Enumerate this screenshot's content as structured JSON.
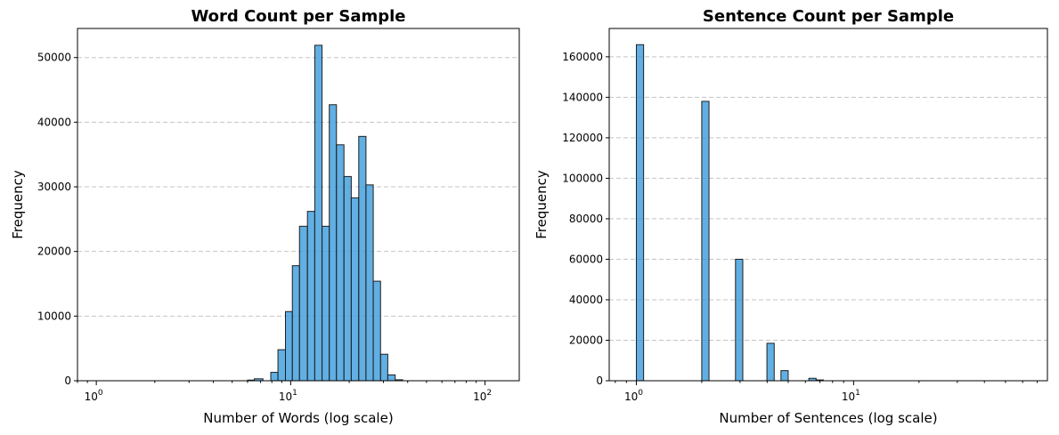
{
  "style": {
    "bar_color": "#3498db",
    "edge_color": "#222222",
    "grid_color": "#c4c4c4"
  },
  "chart_data": [
    {
      "type": "bar",
      "title": "Word Count per Sample",
      "xlabel": "Number of Words (log scale)",
      "ylabel": "Frequency",
      "xscale": "log",
      "xlim": [
        0.8,
        150
      ],
      "ylim": [
        0,
        54500
      ],
      "grid": "y, dashed",
      "x_major_ticks": [
        {
          "base": "10",
          "exp": "0",
          "value": 1
        },
        {
          "base": "10",
          "exp": "1",
          "value": 10
        },
        {
          "base": "10",
          "exp": "2",
          "value": 100
        }
      ],
      "y_ticks": [
        {
          "label": "0",
          "value": 0
        },
        {
          "label": "10000",
          "value": 10000
        },
        {
          "label": "20000",
          "value": 20000
        },
        {
          "label": "30000",
          "value": 30000
        },
        {
          "label": "40000",
          "value": 40000
        },
        {
          "label": "50000",
          "value": 50000
        }
      ],
      "bins": [
        {
          "x0": 6.0,
          "x1": 6.5,
          "value": 100
        },
        {
          "x0": 6.5,
          "x1": 7.2,
          "value": 300
        },
        {
          "x0": 7.9,
          "x1": 8.6,
          "value": 1300
        },
        {
          "x0": 8.6,
          "x1": 9.4,
          "value": 4800
        },
        {
          "x0": 9.4,
          "x1": 10.2,
          "value": 10700
        },
        {
          "x0": 10.2,
          "x1": 11.1,
          "value": 17800
        },
        {
          "x0": 11.1,
          "x1": 12.2,
          "value": 23900
        },
        {
          "x0": 12.2,
          "x1": 13.3,
          "value": 26200
        },
        {
          "x0": 13.3,
          "x1": 14.5,
          "value": 51900
        },
        {
          "x0": 14.5,
          "x1": 15.8,
          "value": 23900
        },
        {
          "x0": 15.8,
          "x1": 17.2,
          "value": 42700
        },
        {
          "x0": 17.2,
          "x1": 18.8,
          "value": 36500
        },
        {
          "x0": 18.8,
          "x1": 20.5,
          "value": 31600
        },
        {
          "x0": 20.5,
          "x1": 22.4,
          "value": 28300
        },
        {
          "x0": 22.4,
          "x1": 24.4,
          "value": 37800
        },
        {
          "x0": 24.4,
          "x1": 26.6,
          "value": 30300
        },
        {
          "x0": 26.6,
          "x1": 29.0,
          "value": 15400
        },
        {
          "x0": 29.0,
          "x1": 31.6,
          "value": 4100
        },
        {
          "x0": 31.6,
          "x1": 34.5,
          "value": 900
        },
        {
          "x0": 34.5,
          "x1": 37.7,
          "value": 150
        }
      ]
    },
    {
      "type": "bar",
      "title": "Sentence Count per Sample",
      "xlabel": "Number of Sentences (log scale)",
      "ylabel": "Frequency",
      "xscale": "log",
      "xlim": [
        0.75,
        78
      ],
      "ylim": [
        0,
        174000
      ],
      "grid": "y, dashed",
      "x_major_ticks": [
        {
          "base": "10",
          "exp": "0",
          "value": 1
        },
        {
          "base": "10",
          "exp": "1",
          "value": 10
        }
      ],
      "y_ticks": [
        {
          "label": "0",
          "value": 0
        },
        {
          "label": "20000",
          "value": 20000
        },
        {
          "label": "40000",
          "value": 40000
        },
        {
          "label": "60000",
          "value": 60000
        },
        {
          "label": "80000",
          "value": 80000
        },
        {
          "label": "100000",
          "value": 100000
        },
        {
          "label": "120000",
          "value": 120000
        },
        {
          "label": "140000",
          "value": 140000
        },
        {
          "label": "160000",
          "value": 160000
        }
      ],
      "bins": [
        {
          "x0": 1.0,
          "x1": 1.08,
          "value": 166000
        },
        {
          "x0": 2.0,
          "x1": 2.16,
          "value": 138000
        },
        {
          "x0": 2.86,
          "x1": 3.09,
          "value": 60000
        },
        {
          "x0": 3.99,
          "x1": 4.31,
          "value": 18500
        },
        {
          "x0": 4.63,
          "x1": 5.0,
          "value": 5000
        },
        {
          "x0": 6.22,
          "x1": 6.72,
          "value": 1200
        },
        {
          "x0": 6.72,
          "x1": 7.26,
          "value": 400
        }
      ]
    }
  ]
}
